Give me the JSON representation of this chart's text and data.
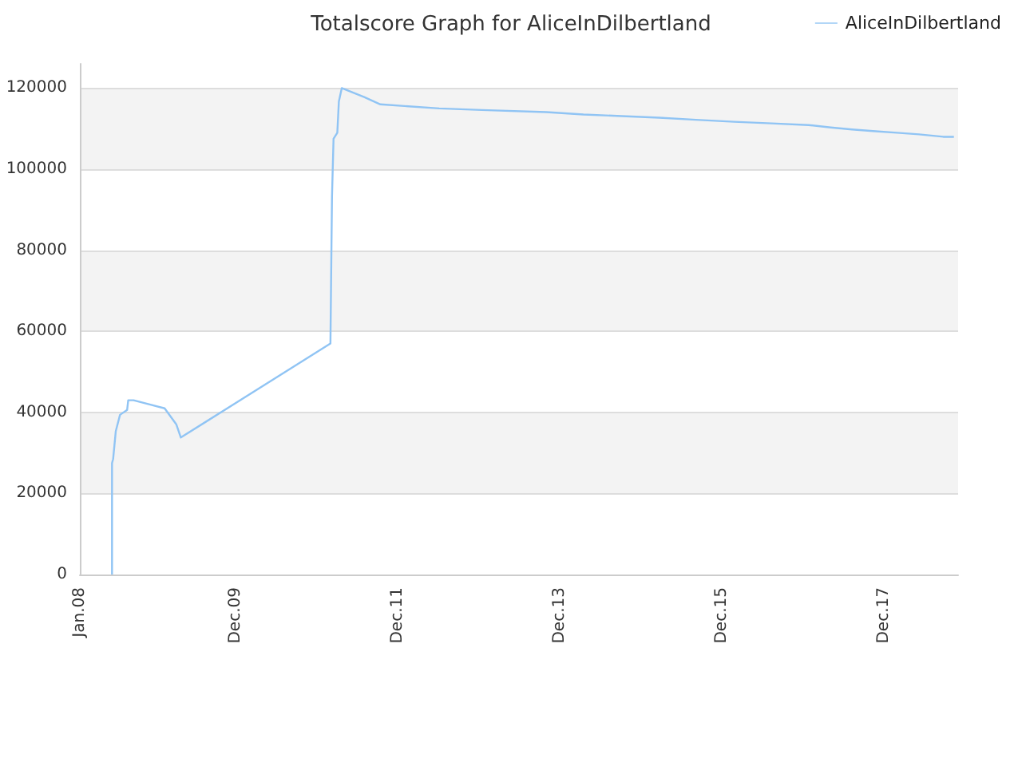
{
  "chart_data": {
    "type": "line",
    "title": "Totalscore Graph for AliceInDilbertland",
    "x": [
      "2008-05-25",
      "2008-05-25",
      "2008-05-30",
      "2008-06-11",
      "2008-06-30",
      "2008-08-01",
      "2008-08-06",
      "2008-08-30",
      "2009-01-17",
      "2009-03-11",
      "2009-03-31",
      "2011-02-03",
      "2011-02-10",
      "2011-02-17",
      "2011-03-06",
      "2011-03-13",
      "2011-03-26",
      "2011-07-05",
      "2011-09-16",
      "2012-06-07",
      "2012-12-17",
      "2013-10-03",
      "2014-03-19",
      "2014-09-07",
      "2015-02-23",
      "2015-08-08",
      "2016-01-27",
      "2016-07-14",
      "2016-12-27",
      "2017-04-06",
      "2017-07-11",
      "2017-10-13",
      "2018-01-30",
      "2018-05-09",
      "2018-08-26",
      "2018-10-13"
    ],
    "series": [
      {
        "name": "AliceInDilbertland",
        "color": "#90c4f4",
        "values": [
          0,
          27500,
          28500,
          35400,
          39400,
          40600,
          43000,
          43000,
          41000,
          37000,
          33800,
          57000,
          93100,
          107500,
          109000,
          116700,
          120000,
          117800,
          116000,
          115000,
          114600,
          114100,
          113500,
          113100,
          112700,
          112200,
          111700,
          111300,
          110900,
          110300,
          109800,
          109400,
          109000,
          108600,
          108000,
          108000
        ]
      }
    ],
    "xlim": [
      "2008-01-01",
      "2018-11-01"
    ],
    "xticks": [
      {
        "value": "2008-01-01",
        "label": "Jan.08"
      },
      {
        "value": "2009-12-01",
        "label": "Dec.09"
      },
      {
        "value": "2011-12-01",
        "label": "Dec.11"
      },
      {
        "value": "2013-12-01",
        "label": "Dec.13"
      },
      {
        "value": "2015-12-01",
        "label": "Dec.15"
      },
      {
        "value": "2017-12-01",
        "label": "Dec.17"
      }
    ],
    "ylim": [
      0,
      126000
    ],
    "yticks": [
      0,
      20000,
      40000,
      60000,
      80000,
      100000,
      120000
    ],
    "grid": "y",
    "legend": "top right",
    "marker": "none",
    "line_style": "solid"
  }
}
